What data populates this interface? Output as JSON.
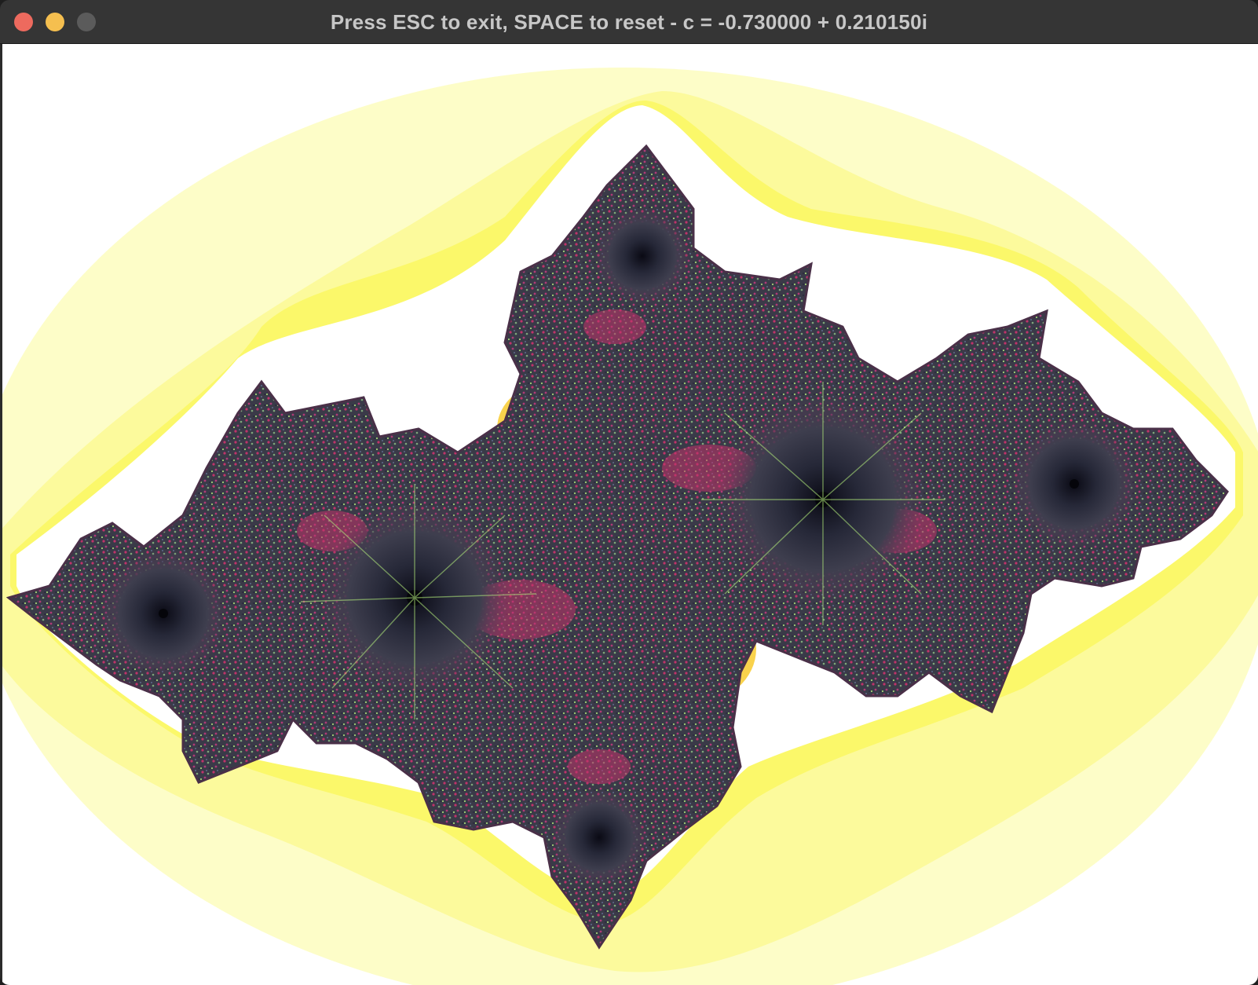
{
  "window": {
    "title": "Press ESC to exit, SPACE to reset - c = -0.730000 + 0.210150i",
    "controls": {
      "close_color": "#ed6a5e",
      "minimize_color": "#f5bf4f",
      "zoom_color": "#5b5b5b"
    }
  },
  "fractal": {
    "type": "julia-set",
    "c_real": -0.73,
    "c_imag": 0.21015,
    "palette": {
      "background": "#ffffff",
      "outer_bands": [
        "#fdfdc8",
        "#fcfa9c",
        "#fbf86a",
        "#fefede"
      ],
      "inner_glow": [
        "#f9d24c",
        "#f7b86a",
        "#f5a5d8",
        "#f3c3ee"
      ],
      "body": [
        "#c0336a",
        "#3c3c46",
        "#26283a",
        "#6e8c6a",
        "#b4ee7c"
      ]
    }
  }
}
